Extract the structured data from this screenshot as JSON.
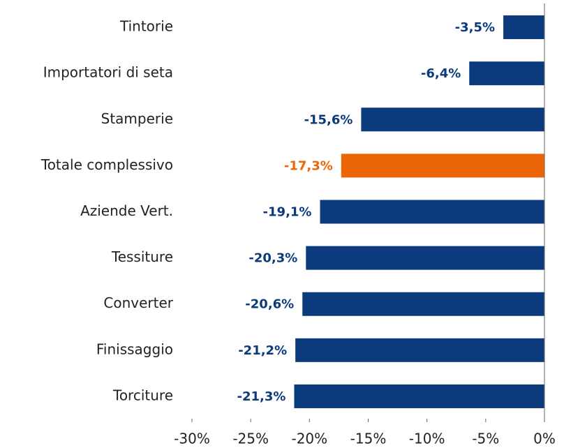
{
  "chart_data": {
    "type": "bar",
    "orientation": "horizontal",
    "categories": [
      "Tintorie",
      "Importatori di seta",
      "Stamperie",
      "Totale complessivo",
      "Aziende Vert.",
      "Tessiture",
      "Converter",
      "Finissaggio",
      "Torciture"
    ],
    "values": [
      -3.5,
      -6.4,
      -15.6,
      -17.3,
      -19.1,
      -20.3,
      -20.6,
      -21.2,
      -21.3
    ],
    "value_labels": [
      "-3,5%",
      "-6,4%",
      "-15,6%",
      "-17,3%",
      "-19,1%",
      "-20,3%",
      "-20,6%",
      "-21,2%",
      "-21,3%"
    ],
    "colors": [
      "#0b3b7c",
      "#0b3b7c",
      "#0b3b7c",
      "#ec6608",
      "#0b3b7c",
      "#0b3b7c",
      "#0b3b7c",
      "#0b3b7c",
      "#0b3b7c"
    ],
    "xlim": [
      -30,
      0
    ],
    "xticks": [
      {
        "value": -30,
        "label": "-30%"
      },
      {
        "value": -25,
        "label": "-25%"
      },
      {
        "value": -20,
        "label": "-20%"
      },
      {
        "value": -15,
        "label": "-15%"
      },
      {
        "value": -10,
        "label": "-10%"
      },
      {
        "value": -5,
        "label": "-5%"
      },
      {
        "value": 0,
        "label": "0%"
      }
    ],
    "grid": false
  }
}
